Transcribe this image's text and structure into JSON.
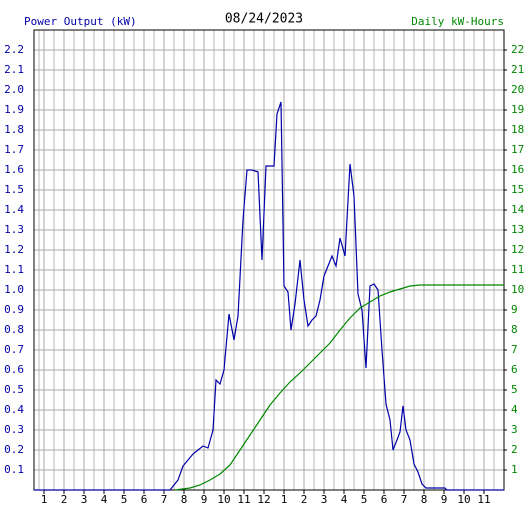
{
  "chart_data": {
    "type": "line",
    "title": "08/24/2023",
    "y_label": "Power Output (kW)",
    "y2_label": "Daily kW-Hours",
    "grid": true,
    "xlim": [
      0.5,
      24
    ],
    "xticks": [
      1,
      2,
      3,
      4,
      5,
      6,
      7,
      8,
      9,
      10,
      11,
      12,
      {
        "value": 13,
        "label": "1"
      },
      {
        "value": 14,
        "label": "2"
      },
      {
        "value": 15,
        "label": "3"
      },
      {
        "value": 16,
        "label": "4"
      },
      {
        "value": 17,
        "label": "5"
      },
      {
        "value": 18,
        "label": "6"
      },
      {
        "value": 19,
        "label": "7"
      },
      {
        "value": 20,
        "label": "8"
      },
      {
        "value": 21,
        "label": "9"
      },
      {
        "value": 22,
        "label": "10"
      },
      {
        "value": 23,
        "label": "11"
      }
    ],
    "ylim": [
      0,
      2.3
    ],
    "yticks": [
      0.1,
      0.2,
      0.3,
      0.4,
      0.5,
      0.6,
      0.7,
      0.8,
      0.9,
      {
        "value": 1,
        "label": "1.0"
      },
      1.1,
      1.2,
      1.3,
      1.4,
      1.5,
      1.6,
      1.7,
      1.8,
      1.9,
      {
        "value": 2,
        "label": "2.0"
      },
      2.1,
      2.2
    ],
    "y2lim": [
      0,
      23
    ],
    "y2ticks": [
      1,
      2,
      3,
      4,
      5,
      6,
      7,
      8,
      9,
      10,
      11,
      12,
      13,
      14,
      15,
      16,
      17,
      18,
      19,
      20,
      21,
      22
    ],
    "series": [
      {
        "name": "Power Output (kW)",
        "color": "#0000aa",
        "x": [
          0.5,
          7.3,
          7.7,
          7.95,
          8.2,
          8.45,
          8.7,
          8.95,
          9.2,
          9.45,
          9.6,
          9.8,
          10,
          10.25,
          10.5,
          10.7,
          10.95,
          11.15,
          11.4,
          11.7,
          11.9,
          12.1,
          12.3,
          12.5,
          12.65,
          12.85,
          13,
          13.2,
          13.35,
          13.55,
          13.8,
          14,
          14.2,
          14.4,
          14.6,
          14.8,
          15,
          15.2,
          15.4,
          15.6,
          15.8,
          16.05,
          16.3,
          16.5,
          16.7,
          16.9,
          17.1,
          17.3,
          17.5,
          17.7,
          17.9,
          18.1,
          18.3,
          18.45,
          18.65,
          18.8,
          18.95,
          19.1,
          19.3,
          19.5,
          19.7,
          19.9,
          20.1,
          21.05,
          21.15,
          24
        ],
        "values": [
          0,
          0,
          0.05,
          0.12,
          0.15,
          0.18,
          0.2,
          0.22,
          0.21,
          0.3,
          0.55,
          0.53,
          0.6,
          0.88,
          0.75,
          0.87,
          1.35,
          1.6,
          1.6,
          1.59,
          1.15,
          1.62,
          1.62,
          1.62,
          1.88,
          1.94,
          1.02,
          0.99,
          0.8,
          0.93,
          1.15,
          0.95,
          0.82,
          0.85,
          0.87,
          0.95,
          1.07,
          1.12,
          1.17,
          1.12,
          1.26,
          1.17,
          1.63,
          1.47,
          0.98,
          0.9,
          0.61,
          1.02,
          1.03,
          1.0,
          0.7,
          0.43,
          0.35,
          0.2,
          0.25,
          0.29,
          0.42,
          0.3,
          0.25,
          0.13,
          0.09,
          0.03,
          0.01,
          0.01,
          0,
          0
        ]
      },
      {
        "name": "Daily kW-Hours",
        "color": "#008800",
        "axis": "y2",
        "x": [
          7.55,
          8.3,
          8.8,
          9.3,
          9.8,
          10.3,
          10.8,
          11.3,
          11.8,
          12.3,
          12.8,
          13.3,
          13.8,
          14.3,
          14.8,
          15.3,
          15.8,
          16.3,
          16.8,
          17.3,
          17.8,
          18.3,
          18.8,
          19.3,
          19.8,
          24
        ],
        "values": [
          0,
          0.1,
          0.25,
          0.5,
          0.8,
          1.25,
          2,
          2.75,
          3.5,
          4.25,
          4.85,
          5.4,
          5.85,
          6.35,
          6.85,
          7.35,
          8,
          8.6,
          9.1,
          9.4,
          9.7,
          9.9,
          10.05,
          10.2,
          10.25,
          10.25
        ]
      }
    ]
  }
}
